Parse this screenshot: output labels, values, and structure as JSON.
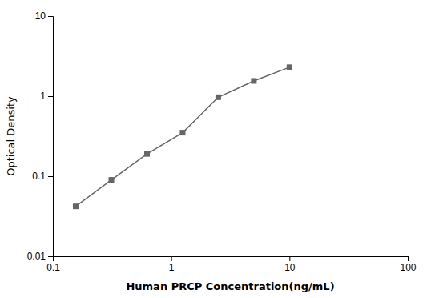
{
  "chart_data": {
    "type": "line",
    "x": [
      0.156,
      0.3125,
      0.625,
      1.25,
      2.5,
      5.0,
      10.0
    ],
    "values": [
      0.042,
      0.09,
      0.19,
      0.35,
      0.97,
      1.55,
      2.3
    ],
    "xlabel": "Human PRCP Concentration(ng/mL)",
    "ylabel": "Optical Density",
    "xlim": [
      0.1,
      100
    ],
    "ylim": [
      0.01,
      10
    ],
    "xticks": [
      0.1,
      1,
      10,
      100
    ],
    "yticks": [
      0.01,
      0.1,
      1,
      10
    ],
    "log": true,
    "color": "#666666",
    "marker": "square",
    "line_style": "solid"
  }
}
